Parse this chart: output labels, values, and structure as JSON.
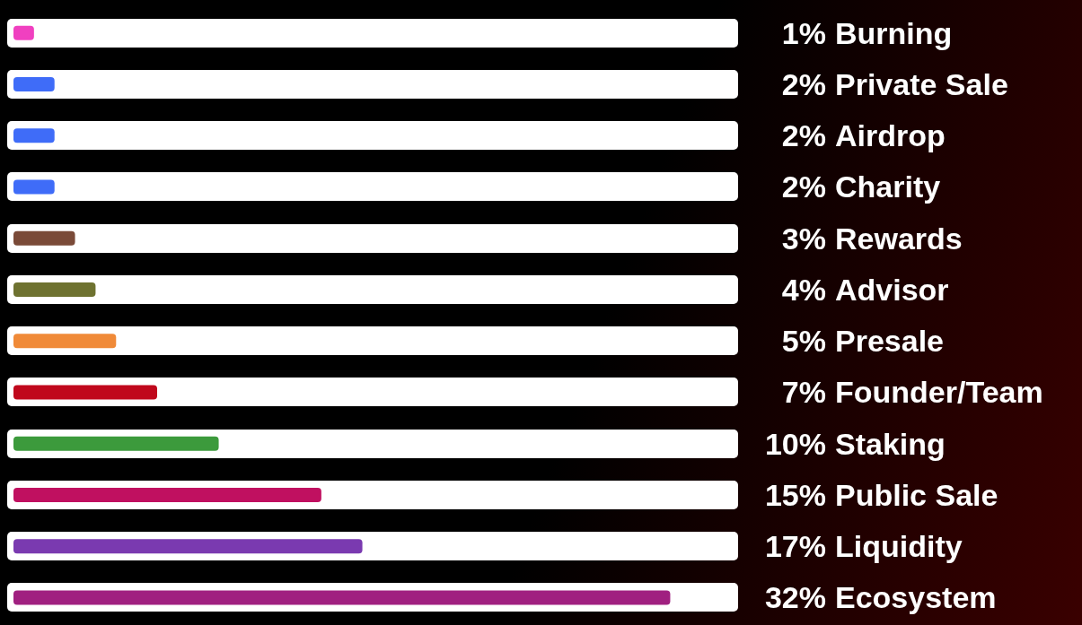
{
  "chart_data": {
    "type": "bar",
    "orientation": "horizontal",
    "categories": [
      "Burning",
      "Private Sale",
      "Airdrop",
      "Charity",
      "Rewards",
      "Advisor",
      "Presale",
      "Founder/Team",
      "Staking",
      "Public Sale",
      "Liquidity",
      "Ecosystem"
    ],
    "values": [
      1,
      2,
      2,
      2,
      3,
      4,
      5,
      7,
      10,
      15,
      17,
      32
    ],
    "value_labels": [
      "1%",
      "2%",
      "2%",
      "2%",
      "3%",
      "4%",
      "5%",
      "7%",
      "10%",
      "15%",
      "17%",
      "32%"
    ],
    "colors": [
      "#f040c0",
      "#3f6cf8",
      "#3f6cf8",
      "#3f6cf8",
      "#7a4a38",
      "#6e7230",
      "#f08a38",
      "#c0081c",
      "#3c9a3c",
      "#c01060",
      "#7a3ab0",
      "#a02080"
    ],
    "grid": false,
    "legend": false
  }
}
